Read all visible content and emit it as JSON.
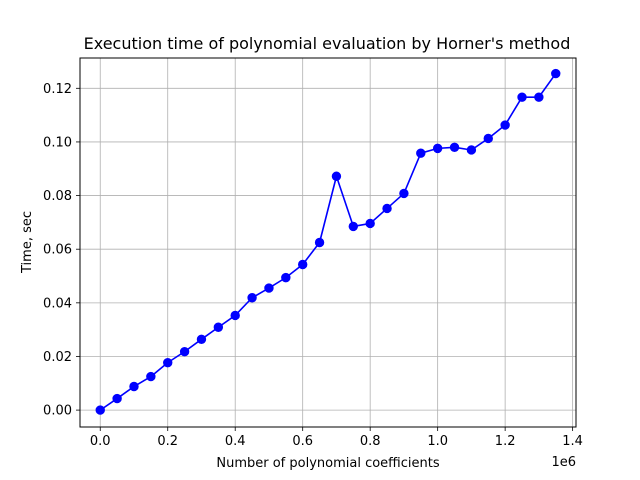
{
  "chart_data": {
    "type": "line",
    "title": "Execution time of polynomial evaluation by Horner's method",
    "xlabel": "Number of polynomial coefficients",
    "ylabel": "Time, sec",
    "x_offset_label": "1e6",
    "xlim": [
      -60000,
      1410000
    ],
    "ylim": [
      -0.0063,
      0.1313
    ],
    "x_ticks": [
      0,
      200000,
      400000,
      600000,
      800000,
      1000000,
      1200000,
      1400000
    ],
    "x_tick_labels": [
      "0.0",
      "0.2",
      "0.4",
      "0.6",
      "0.8",
      "1.0",
      "1.2",
      "1.4"
    ],
    "y_ticks": [
      0.0,
      0.02,
      0.04,
      0.06,
      0.08,
      0.1,
      0.12
    ],
    "y_tick_labels": [
      "0.00",
      "0.02",
      "0.04",
      "0.06",
      "0.08",
      "0.10",
      "0.12"
    ],
    "grid": true,
    "series": [
      {
        "color": "#0000ff",
        "marker": "circle",
        "x": [
          0,
          50000,
          100000,
          150000,
          200000,
          250000,
          300000,
          350000,
          400000,
          450000,
          500000,
          550000,
          600000,
          650000,
          700000,
          750000,
          800000,
          850000,
          900000,
          950000,
          1000000,
          1050000,
          1100000,
          1150000,
          1200000,
          1250000,
          1300000,
          1350000
        ],
        "values": [
          0.0,
          0.0043,
          0.0088,
          0.0125,
          0.0177,
          0.0218,
          0.0264,
          0.0309,
          0.0353,
          0.0419,
          0.0455,
          0.0494,
          0.0543,
          0.0625,
          0.0872,
          0.0685,
          0.0696,
          0.0752,
          0.0808,
          0.0958,
          0.0976,
          0.098,
          0.097,
          0.1013,
          0.1063,
          0.1167,
          0.1167,
          0.1255
        ]
      }
    ]
  }
}
